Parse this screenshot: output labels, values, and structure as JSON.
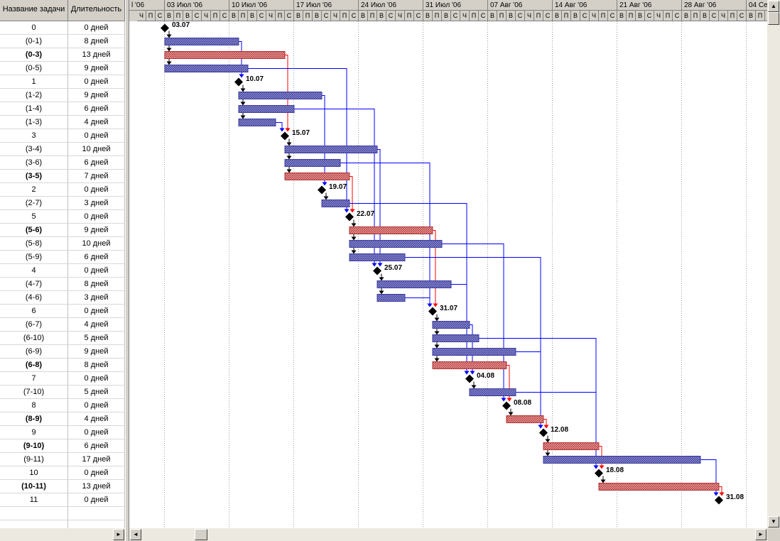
{
  "table": {
    "col_name": "Название задачи",
    "col_duration": "Длительность",
    "rows": [
      {
        "name": "0",
        "duration": "0 дней",
        "critical": false
      },
      {
        "name": "(0-1)",
        "duration": "8 дней",
        "critical": false
      },
      {
        "name": "(0-3)",
        "duration": "13 дней",
        "critical": true
      },
      {
        "name": "(0-5)",
        "duration": "9 дней",
        "critical": false
      },
      {
        "name": "1",
        "duration": "0 дней",
        "critical": false
      },
      {
        "name": "(1-2)",
        "duration": "9 дней",
        "critical": false
      },
      {
        "name": "(1-4)",
        "duration": "6 дней",
        "critical": false
      },
      {
        "name": "(1-3)",
        "duration": "4 дней",
        "critical": false
      },
      {
        "name": "3",
        "duration": "0 дней",
        "critical": false
      },
      {
        "name": "(3-4)",
        "duration": "10 дней",
        "critical": false
      },
      {
        "name": "(3-6)",
        "duration": "6 дней",
        "critical": false
      },
      {
        "name": "(3-5)",
        "duration": "7 дней",
        "critical": true
      },
      {
        "name": "2",
        "duration": "0 дней",
        "critical": false
      },
      {
        "name": "(2-7)",
        "duration": "3 дней",
        "critical": false
      },
      {
        "name": "5",
        "duration": "0 дней",
        "critical": false
      },
      {
        "name": "(5-6)",
        "duration": "9 дней",
        "critical": true
      },
      {
        "name": "(5-8)",
        "duration": "10 дней",
        "critical": false
      },
      {
        "name": "(5-9)",
        "duration": "6 дней",
        "critical": false
      },
      {
        "name": "4",
        "duration": "0 дней",
        "critical": false
      },
      {
        "name": "(4-7)",
        "duration": "8 дней",
        "critical": false
      },
      {
        "name": "(4-6)",
        "duration": "3 дней",
        "critical": false
      },
      {
        "name": "6",
        "duration": "0 дней",
        "critical": false
      },
      {
        "name": "(6-7)",
        "duration": "4 дней",
        "critical": false
      },
      {
        "name": "(6-10)",
        "duration": "5 дней",
        "critical": false
      },
      {
        "name": "(6-9)",
        "duration": "9 дней",
        "critical": false
      },
      {
        "name": "(6-8)",
        "duration": "8 дней",
        "critical": true
      },
      {
        "name": "7",
        "duration": "0 дней",
        "critical": false
      },
      {
        "name": "(7-10)",
        "duration": "5 дней",
        "critical": false
      },
      {
        "name": "8",
        "duration": "0 дней",
        "critical": false
      },
      {
        "name": "(8-9)",
        "duration": "4 дней",
        "critical": true
      },
      {
        "name": "9",
        "duration": "0 дней",
        "critical": false
      },
      {
        "name": "(9-10)",
        "duration": "6 дней",
        "critical": true
      },
      {
        "name": "(9-11)",
        "duration": "17 дней",
        "critical": false
      },
      {
        "name": "10",
        "duration": "0 дней",
        "critical": false
      },
      {
        "name": "(10-11)",
        "duration": "13 дней",
        "critical": true
      },
      {
        "name": "11",
        "duration": "0 дней",
        "critical": false
      }
    ]
  },
  "timescale": {
    "weeks": [
      "l '06",
      "03 Июл '06",
      "10 Июл '06",
      "17 Июл '06",
      "24 Июл '06",
      "31 Июл '06",
      "07 Авг '06",
      "14 Авг '06",
      "21 Авг '06",
      "28 Авг '06",
      "04 Сен '06"
    ],
    "first_week_days": [
      "Ч",
      "П",
      "С"
    ],
    "day_letters": [
      "В",
      "П",
      "В",
      "С",
      "Ч",
      "П",
      "С"
    ]
  },
  "chart_data": {
    "type": "gantt",
    "start_date": "2006-07-03",
    "tasks": [
      {
        "row": 0,
        "kind": "milestone",
        "day": 0,
        "label": "03.07"
      },
      {
        "row": 1,
        "kind": "bar",
        "start": 0,
        "end": 8,
        "critical": false
      },
      {
        "row": 2,
        "kind": "bar",
        "start": 0,
        "end": 13,
        "critical": true
      },
      {
        "row": 3,
        "kind": "bar",
        "start": 0,
        "end": 9,
        "critical": false
      },
      {
        "row": 4,
        "kind": "milestone",
        "day": 8,
        "label": "10.07"
      },
      {
        "row": 5,
        "kind": "bar",
        "start": 8,
        "end": 17,
        "critical": false
      },
      {
        "row": 6,
        "kind": "bar",
        "start": 8,
        "end": 14,
        "critical": false
      },
      {
        "row": 7,
        "kind": "bar",
        "start": 8,
        "end": 12,
        "critical": false
      },
      {
        "row": 8,
        "kind": "milestone",
        "day": 13,
        "label": "15.07"
      },
      {
        "row": 9,
        "kind": "bar",
        "start": 13,
        "end": 23,
        "critical": false
      },
      {
        "row": 10,
        "kind": "bar",
        "start": 13,
        "end": 19,
        "critical": false
      },
      {
        "row": 11,
        "kind": "bar",
        "start": 13,
        "end": 20,
        "critical": true
      },
      {
        "row": 12,
        "kind": "milestone",
        "day": 17,
        "label": "19.07"
      },
      {
        "row": 13,
        "kind": "bar",
        "start": 17,
        "end": 20,
        "critical": false
      },
      {
        "row": 14,
        "kind": "milestone",
        "day": 20,
        "label": "22.07"
      },
      {
        "row": 15,
        "kind": "bar",
        "start": 20,
        "end": 29,
        "critical": true
      },
      {
        "row": 16,
        "kind": "bar",
        "start": 20,
        "end": 30,
        "critical": false
      },
      {
        "row": 17,
        "kind": "bar",
        "start": 20,
        "end": 26,
        "critical": false
      },
      {
        "row": 18,
        "kind": "milestone",
        "day": 23,
        "label": "25.07"
      },
      {
        "row": 19,
        "kind": "bar",
        "start": 23,
        "end": 31,
        "critical": false
      },
      {
        "row": 20,
        "kind": "bar",
        "start": 23,
        "end": 26,
        "critical": false
      },
      {
        "row": 21,
        "kind": "milestone",
        "day": 29,
        "label": "31.07"
      },
      {
        "row": 22,
        "kind": "bar",
        "start": 29,
        "end": 33,
        "critical": false
      },
      {
        "row": 23,
        "kind": "bar",
        "start": 29,
        "end": 34,
        "critical": false
      },
      {
        "row": 24,
        "kind": "bar",
        "start": 29,
        "end": 38,
        "critical": false
      },
      {
        "row": 25,
        "kind": "bar",
        "start": 29,
        "end": 37,
        "critical": true
      },
      {
        "row": 26,
        "kind": "milestone",
        "day": 33,
        "label": "04.08"
      },
      {
        "row": 27,
        "kind": "bar",
        "start": 33,
        "end": 38,
        "critical": false
      },
      {
        "row": 28,
        "kind": "milestone",
        "day": 37,
        "label": "08.08"
      },
      {
        "row": 29,
        "kind": "bar",
        "start": 37,
        "end": 41,
        "critical": true
      },
      {
        "row": 30,
        "kind": "milestone",
        "day": 41,
        "label": "12.08"
      },
      {
        "row": 31,
        "kind": "bar",
        "start": 41,
        "end": 47,
        "critical": true
      },
      {
        "row": 32,
        "kind": "bar",
        "start": 41,
        "end": 58,
        "critical": false
      },
      {
        "row": 33,
        "kind": "milestone",
        "day": 47,
        "label": "18.08"
      },
      {
        "row": 34,
        "kind": "bar",
        "start": 47,
        "end": 60,
        "critical": true
      },
      {
        "row": 35,
        "kind": "milestone",
        "day": 60,
        "label": "31.08"
      }
    ],
    "links": [
      {
        "from": 0,
        "to": 1,
        "critical": false
      },
      {
        "from": 0,
        "to": 2,
        "critical": false
      },
      {
        "from": 0,
        "to": 3,
        "critical": false
      },
      {
        "from": 1,
        "to": 4,
        "critical": false
      },
      {
        "from": 2,
        "to": 8,
        "critical": true
      },
      {
        "from": 3,
        "to": 14,
        "critical": false
      },
      {
        "from": 4,
        "to": 5,
        "critical": false
      },
      {
        "from": 4,
        "to": 6,
        "critical": false
      },
      {
        "from": 4,
        "to": 7,
        "critical": false
      },
      {
        "from": 5,
        "to": 12,
        "critical": false
      },
      {
        "from": 6,
        "to": 18,
        "critical": false
      },
      {
        "from": 7,
        "to": 8,
        "critical": false
      },
      {
        "from": 8,
        "to": 9,
        "critical": false
      },
      {
        "from": 8,
        "to": 10,
        "critical": false
      },
      {
        "from": 8,
        "to": 11,
        "critical": false
      },
      {
        "from": 9,
        "to": 18,
        "critical": false
      },
      {
        "from": 10,
        "to": 21,
        "critical": false
      },
      {
        "from": 11,
        "to": 14,
        "critical": true
      },
      {
        "from": 12,
        "to": 13,
        "critical": false
      },
      {
        "from": 13,
        "to": 26,
        "critical": false
      },
      {
        "from": 14,
        "to": 15,
        "critical": false
      },
      {
        "from": 14,
        "to": 16,
        "critical": false
      },
      {
        "from": 14,
        "to": 17,
        "critical": false
      },
      {
        "from": 15,
        "to": 21,
        "critical": true
      },
      {
        "from": 16,
        "to": 28,
        "critical": false
      },
      {
        "from": 17,
        "to": 30,
        "critical": false
      },
      {
        "from": 18,
        "to": 19,
        "critical": false
      },
      {
        "from": 18,
        "to": 20,
        "critical": false
      },
      {
        "from": 19,
        "to": 26,
        "critical": false
      },
      {
        "from": 20,
        "to": 21,
        "critical": false
      },
      {
        "from": 21,
        "to": 22,
        "critical": false
      },
      {
        "from": 21,
        "to": 23,
        "critical": false
      },
      {
        "from": 21,
        "to": 24,
        "critical": false
      },
      {
        "from": 21,
        "to": 25,
        "critical": false
      },
      {
        "from": 22,
        "to": 26,
        "critical": false
      },
      {
        "from": 23,
        "to": 33,
        "critical": false
      },
      {
        "from": 24,
        "to": 30,
        "critical": false
      },
      {
        "from": 25,
        "to": 28,
        "critical": true
      },
      {
        "from": 26,
        "to": 27,
        "critical": false
      },
      {
        "from": 27,
        "to": 33,
        "critical": false
      },
      {
        "from": 28,
        "to": 29,
        "critical": false
      },
      {
        "from": 29,
        "to": 30,
        "critical": true
      },
      {
        "from": 30,
        "to": 31,
        "critical": false
      },
      {
        "from": 30,
        "to": 32,
        "critical": false
      },
      {
        "from": 31,
        "to": 33,
        "critical": true
      },
      {
        "from": 32,
        "to": 35,
        "critical": false
      },
      {
        "from": 33,
        "to": 34,
        "critical": false
      },
      {
        "from": 34,
        "to": 35,
        "critical": true
      }
    ],
    "colors": {
      "bar": "#3a3aa0",
      "bar_fill": "#8c8cc8",
      "critical_bar": "#b03030",
      "critical_fill": "#e8a0a0",
      "link": "#0000ff",
      "critical_link": "#ff0000",
      "milestone": "#000000"
    }
  }
}
